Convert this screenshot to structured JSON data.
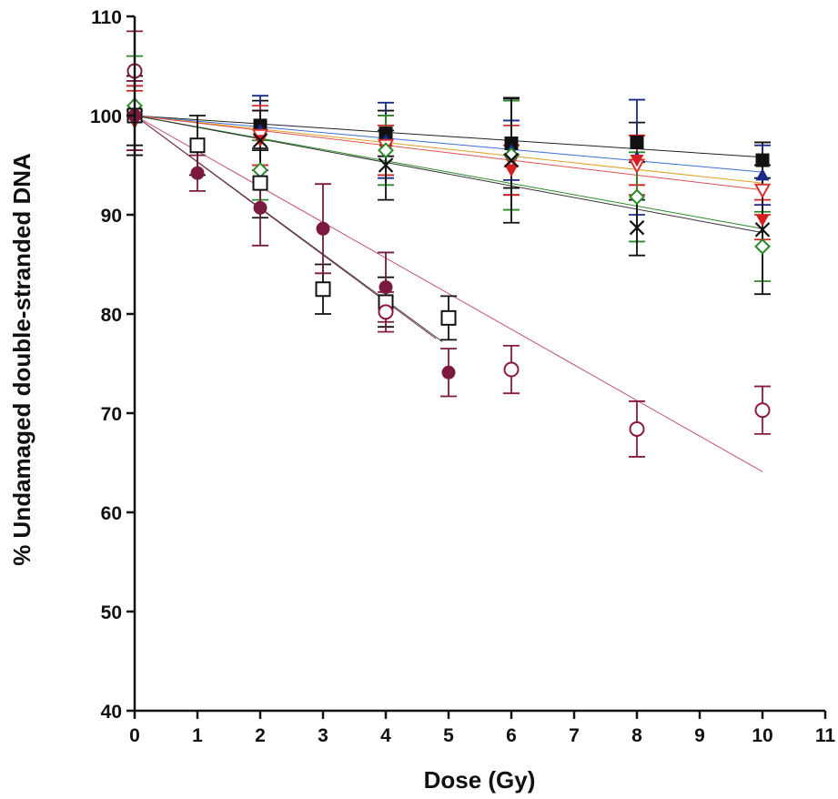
{
  "chart_data": {
    "type": "scatter",
    "xlabel": "Dose (Gy)",
    "ylabel": "% Undamaged double-stranded DNA",
    "xlim": [
      0,
      11
    ],
    "ylim": [
      40,
      110
    ],
    "xticks": [
      0,
      1,
      2,
      3,
      4,
      5,
      6,
      7,
      8,
      9,
      10,
      11
    ],
    "yticks": [
      40,
      50,
      60,
      70,
      80,
      90,
      100,
      110
    ],
    "grid": false,
    "legend": "none",
    "series": [
      {
        "marker": "filled-square",
        "color": "#111111",
        "x": [
          0,
          2,
          4,
          6,
          8,
          10
        ],
        "y": [
          100,
          99,
          98.2,
          97.2,
          97.3,
          95.5
        ],
        "err": [
          3,
          2.5,
          2.3,
          4.5,
          2,
          1.8
        ],
        "fit": {
          "x": [
            0,
            10
          ],
          "y": [
            100,
            95.8
          ],
          "color": "#222222"
        }
      },
      {
        "marker": "filled-triangle",
        "color": "#1a2a8c",
        "x": [
          0,
          2,
          4,
          6,
          8,
          10
        ],
        "y": [
          100,
          98.5,
          97.5,
          96.5,
          95.8,
          94
        ],
        "err": [
          3.5,
          3.5,
          3.8,
          3,
          5.8,
          3
        ],
        "fit": {
          "x": [
            0,
            10
          ],
          "y": [
            100,
            94.3
          ],
          "color": "#3a6fd8"
        }
      },
      {
        "marker": "open-triangle-down",
        "color": "#d43030",
        "x": [
          0,
          2,
          4,
          6,
          8,
          10
        ],
        "y": [
          99.5,
          98,
          97,
          95.5,
          95,
          92.5
        ],
        "err": [
          3.5,
          3,
          3,
          3.5,
          3,
          2.5
        ],
        "fit": {
          "x": [
            0,
            10
          ],
          "y": [
            100,
            93.2
          ],
          "color": "#e0a020"
        }
      },
      {
        "marker": "filled-triangle-down",
        "color": "#d42020",
        "x": [
          0,
          2,
          4,
          6,
          8,
          10
        ],
        "y": [
          99.5,
          97.5,
          96.5,
          94.5,
          95.5,
          89.5
        ],
        "err": [
          3,
          3,
          2.5,
          2.5,
          2.5,
          2
        ],
        "fit": {
          "x": [
            0,
            10
          ],
          "y": [
            100,
            92.5
          ],
          "color": "#e05050"
        }
      },
      {
        "marker": "open-diamond",
        "color": "#2a8a2a",
        "x": [
          0,
          2,
          4,
          6,
          8,
          10
        ],
        "y": [
          101,
          94.5,
          96.5,
          96,
          91.8,
          86.8
        ],
        "err": [
          5,
          3,
          3.5,
          5.5,
          4.5,
          3.5
        ],
        "fit": {
          "x": [
            0,
            10
          ],
          "y": [
            100,
            88.6
          ],
          "color": "#2a8a2a"
        }
      },
      {
        "marker": "cross",
        "color": "#111111",
        "x": [
          0,
          2,
          4,
          6,
          8,
          10
        ],
        "y": [
          100,
          97.5,
          95,
          95.5,
          88.7,
          88.5
        ],
        "err": [
          4,
          3,
          3.5,
          6.3,
          2.8,
          6.5
        ],
        "fit": {
          "x": [
            0,
            10
          ],
          "y": [
            100,
            88.2
          ],
          "color": "#333333"
        }
      },
      {
        "marker": "open-square",
        "color": "#111111",
        "x": [
          0,
          1,
          2,
          3,
          4,
          5
        ],
        "y": [
          100,
          97,
          93.2,
          82.5,
          81.2,
          79.6
        ],
        "err": [
          4,
          3,
          3.5,
          2.5,
          2.5,
          2.2
        ],
        "fit": {
          "x": [
            0,
            4.9
          ],
          "y": [
            100,
            77.2
          ],
          "color": "#444444"
        }
      },
      {
        "marker": "filled-circle",
        "color": "#7a1a40",
        "x": [
          0,
          1,
          2,
          3,
          4,
          5
        ],
        "y": [
          100,
          94.2,
          90.7,
          88.6,
          82.7,
          74.1
        ],
        "err": [
          3.5,
          1.8,
          3.8,
          4.5,
          3.5,
          2.4
        ],
        "fit": {
          "x": [
            0,
            4.8
          ],
          "y": [
            100,
            77.5
          ],
          "color": "#7a3050"
        }
      },
      {
        "marker": "open-circle",
        "color": "#8a1a40",
        "x": [
          0,
          4,
          6,
          8,
          10
        ],
        "y": [
          104.5,
          80.2,
          74.4,
          68.4,
          70.3
        ],
        "err": [
          4,
          2,
          2.4,
          2.8,
          2.4
        ],
        "fit": {
          "x": [
            0,
            10
          ],
          "y": [
            100,
            64.1
          ],
          "color": "#c05070"
        }
      }
    ]
  }
}
